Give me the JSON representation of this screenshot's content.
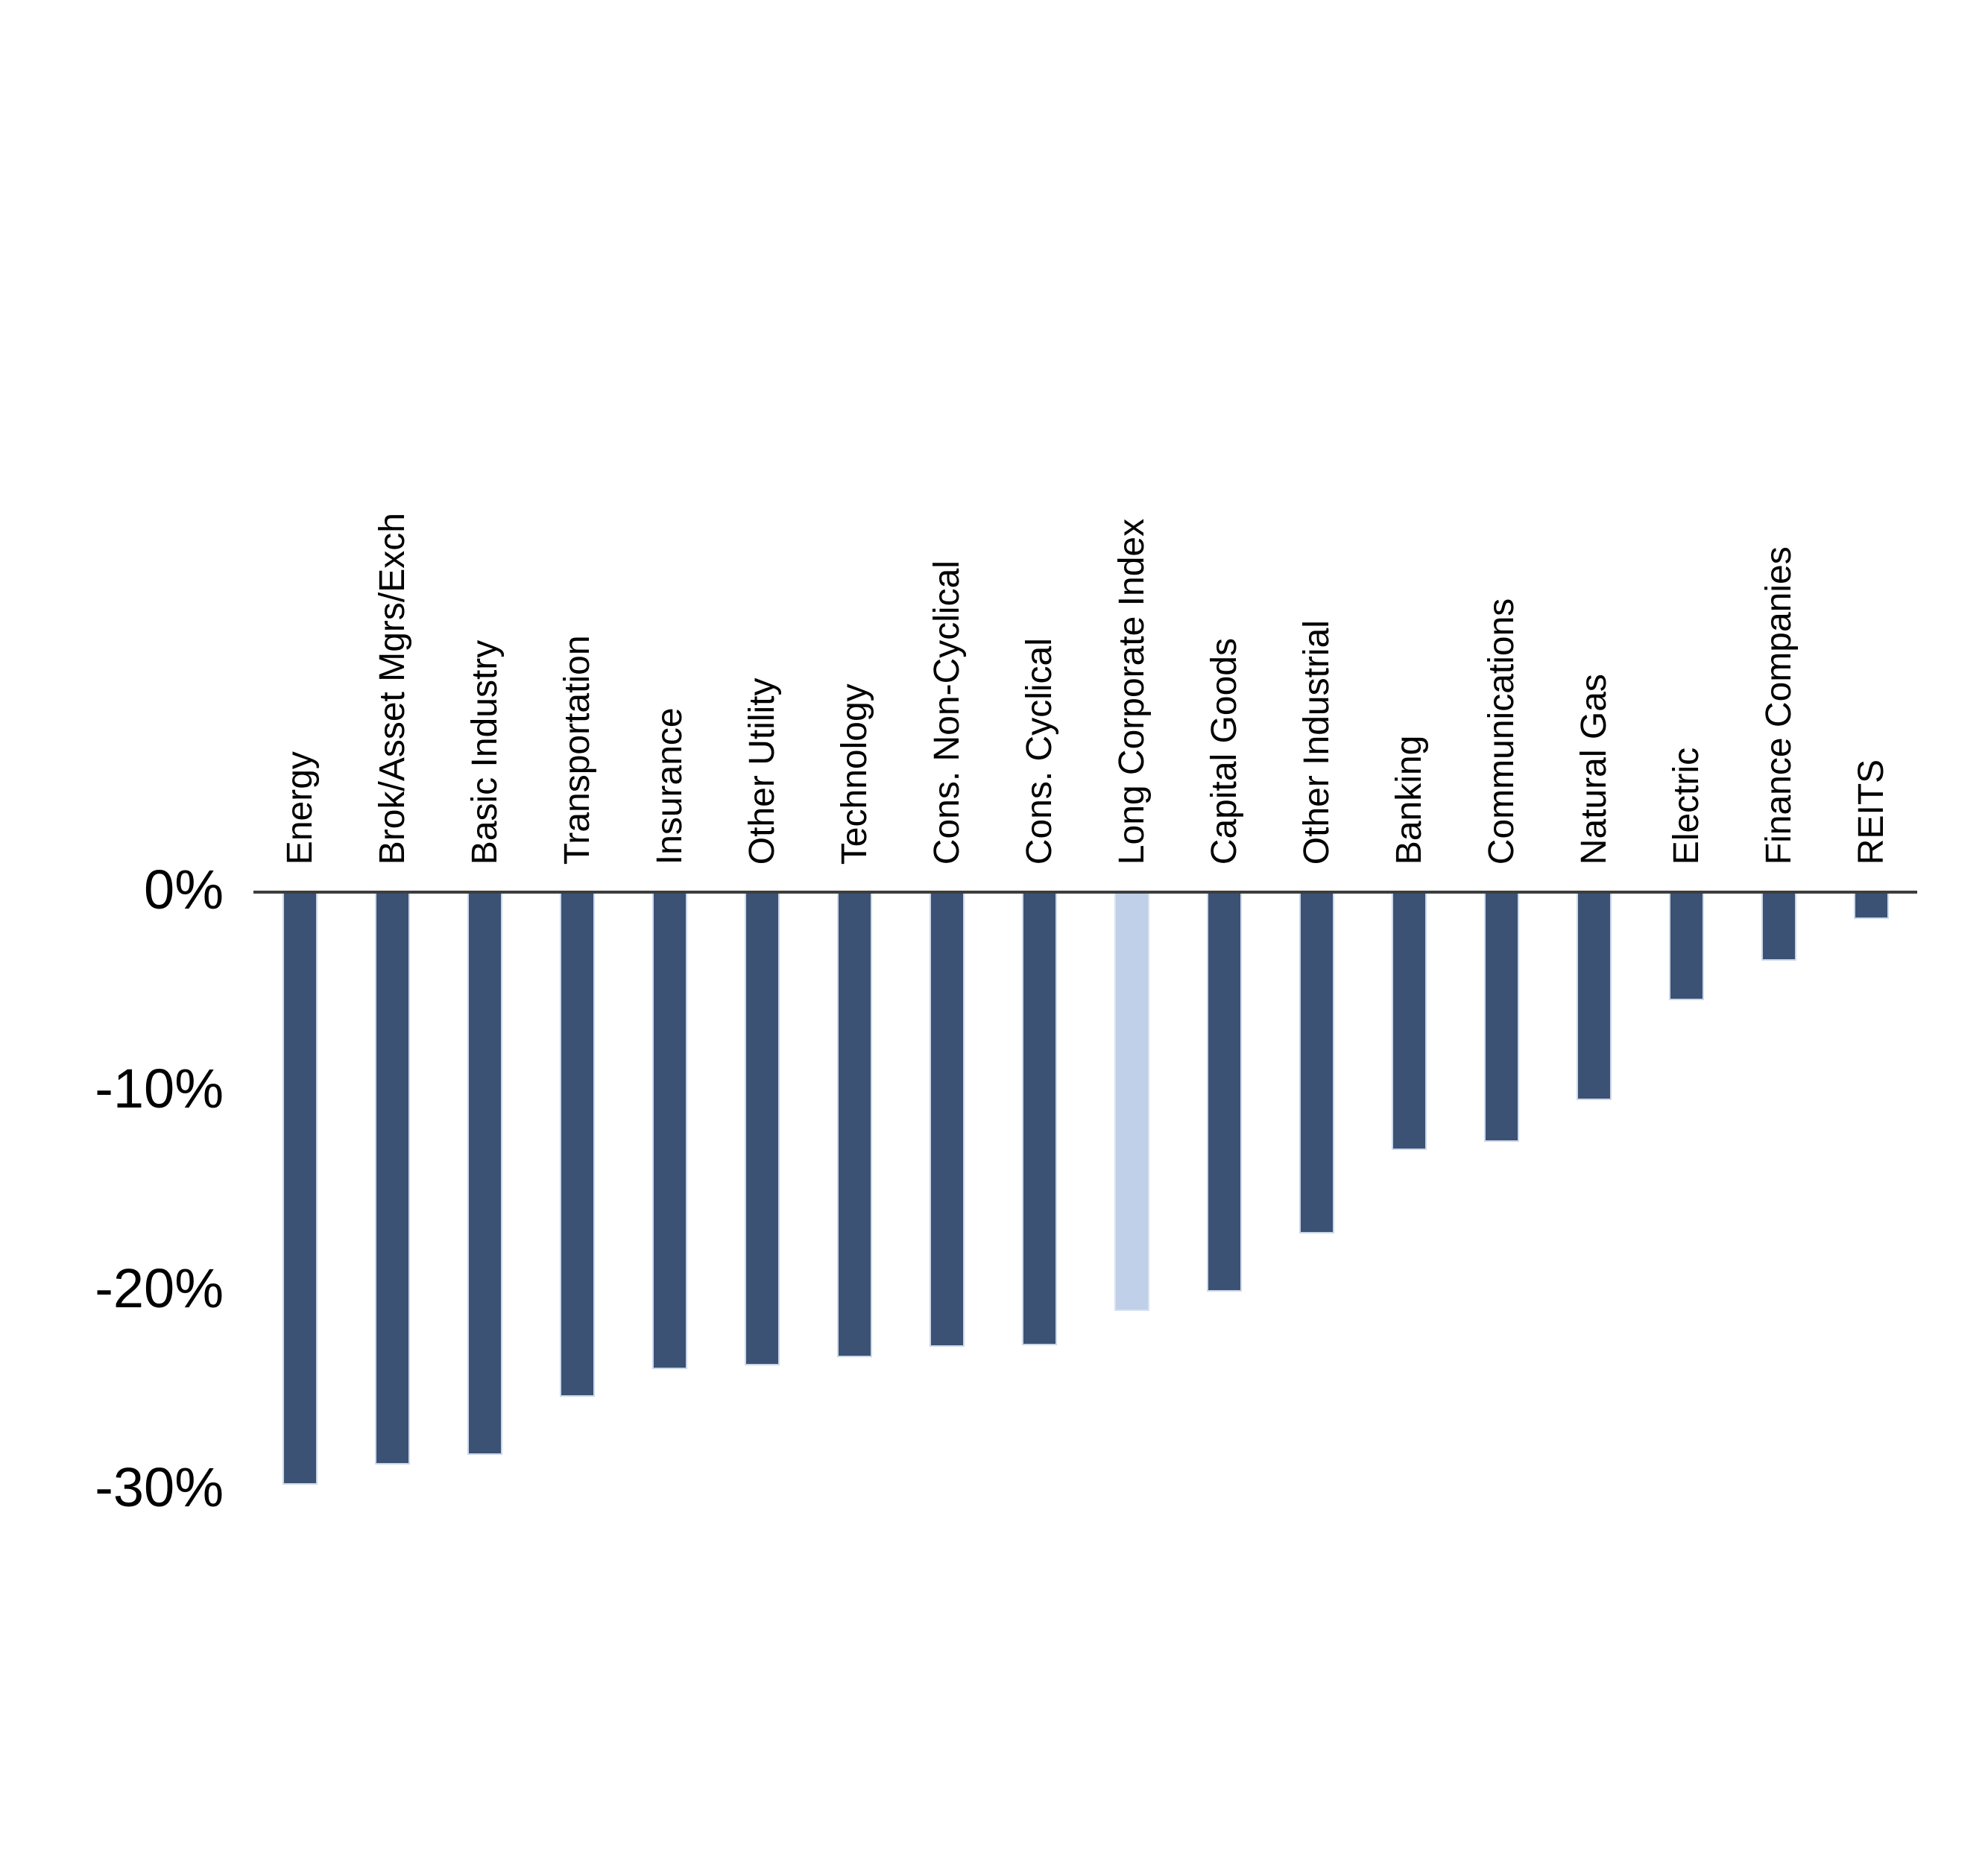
{
  "chart_data": {
    "type": "bar",
    "title": "",
    "xlabel": "",
    "ylabel": "",
    "categories": [
      "Energy",
      "Brok/Asset Mgrs/Exch",
      "Basic Industry",
      "Transportation",
      "Insurance",
      "Other Utility",
      "Technology",
      "Cons. Non-Cyclical",
      "Cons. Cyclical",
      "Long Corporate Index",
      "Capital Goods",
      "Other Industrial",
      "Banking",
      "Communications",
      "Natural Gas",
      "Electric",
      "Finance Companies",
      "REITS"
    ],
    "values": [
      -29.7,
      -28.7,
      -28.2,
      -25.3,
      -23.9,
      -23.7,
      -23.3,
      -22.8,
      -22.7,
      -21.0,
      -20.0,
      -17.1,
      -12.9,
      -12.5,
      -10.4,
      -5.4,
      -3.4,
      -1.3
    ],
    "unit": "%",
    "highlight_category": "Long Corporate Index",
    "highlight_index": 9,
    "bar_color": "#3B5274",
    "highlight_color": "#BFD0E8",
    "bar_edge_color": "#CCD8EA",
    "axis_line_color": "#3D3D3D",
    "ytick_labels": [
      "0%",
      "-10%",
      "-20%",
      "-30%"
    ],
    "ytick_values": [
      0,
      -10,
      -20,
      -30
    ],
    "ylim": [
      -31.5,
      0
    ],
    "grid": false,
    "legend": null,
    "bar_orientation": "vertical",
    "category_label_rotation_deg": 90
  }
}
